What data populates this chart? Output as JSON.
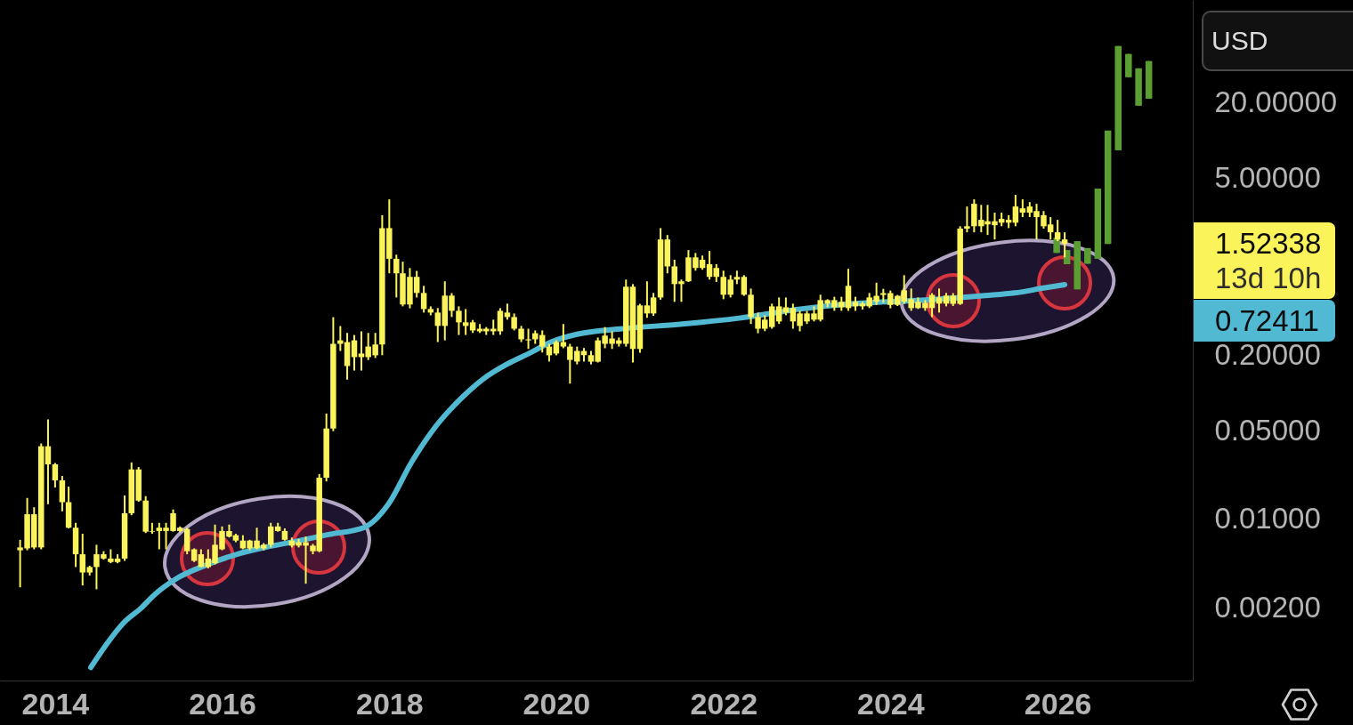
{
  "chart_data": {
    "type": "candlestick",
    "ylabel": "USD",
    "log": true,
    "xlim": [
      "2013-05-05",
      "2027-08-15"
    ],
    "xticks": [
      "2014",
      "2016",
      "2018",
      "2020",
      "2022",
      "2024",
      "2026"
    ],
    "ylim": [
      0.00053,
      130
    ],
    "yticks": [
      {
        "value": 0.002,
        "label": "0.00200"
      },
      {
        "value": 0.01,
        "label": "0.01000"
      },
      {
        "value": 0.05,
        "label": "0.05000"
      },
      {
        "value": 0.2,
        "label": "0.20000"
      },
      {
        "value": 5,
        "label": "5.00000"
      },
      {
        "value": 20,
        "label": "20.00000"
      }
    ],
    "annotations": [
      "1.52338",
      "13d 10h",
      "0.72411"
    ],
    "series": [
      {
        "color": "#fbf35a",
        "x": [
          "2013-08",
          "2013-09",
          "2013-10",
          "2013-11",
          "2013-12",
          "2014-01",
          "2014-02",
          "2014-03",
          "2014-04",
          "2014-05",
          "2014-06",
          "2014-07",
          "2014-08",
          "2014-09",
          "2014-10",
          "2014-11",
          "2014-12",
          "2015-01",
          "2015-02",
          "2015-03",
          "2015-04",
          "2015-05",
          "2015-06",
          "2015-07",
          "2015-08",
          "2015-09",
          "2015-10",
          "2015-11",
          "2015-12",
          "2016-01",
          "2016-02",
          "2016-03",
          "2016-04",
          "2016-05",
          "2016-06",
          "2016-07",
          "2016-08",
          "2016-09",
          "2016-10",
          "2016-11",
          "2016-12",
          "2017-01",
          "2017-02",
          "2017-03",
          "2017-04",
          "2017-05",
          "2017-06",
          "2017-07",
          "2017-08",
          "2017-09",
          "2017-10",
          "2017-11",
          "2017-12",
          "2018-01",
          "2018-02",
          "2018-03",
          "2018-04",
          "2018-05",
          "2018-06",
          "2018-07",
          "2018-08",
          "2018-09",
          "2018-10",
          "2018-11",
          "2018-12",
          "2019-01",
          "2019-02",
          "2019-03",
          "2019-04",
          "2019-05",
          "2019-06",
          "2019-07",
          "2019-08",
          "2019-09",
          "2019-10",
          "2019-11",
          "2019-12",
          "2020-01",
          "2020-02",
          "2020-03",
          "2020-04",
          "2020-05",
          "2020-06",
          "2020-07",
          "2020-08",
          "2020-09",
          "2020-10",
          "2020-11",
          "2020-12",
          "2021-01",
          "2021-02",
          "2021-03",
          "2021-04",
          "2021-05",
          "2021-06",
          "2021-07",
          "2021-08",
          "2021-09",
          "2021-10",
          "2021-11",
          "2021-12",
          "2022-01",
          "2022-02",
          "2022-03",
          "2022-04",
          "2022-05",
          "2022-06",
          "2022-07",
          "2022-08",
          "2022-09",
          "2022-10",
          "2022-11",
          "2022-12",
          "2023-01",
          "2023-02",
          "2023-03",
          "2023-04",
          "2023-05",
          "2023-06",
          "2023-07",
          "2023-08",
          "2023-09",
          "2023-10",
          "2023-11",
          "2023-12",
          "2024-01",
          "2024-02",
          "2024-03",
          "2024-04",
          "2024-05",
          "2024-06",
          "2024-07",
          "2024-08",
          "2024-09",
          "2024-10",
          "2024-11",
          "2024-12",
          "2025-01",
          "2025-02",
          "2025-03",
          "2025-04",
          "2025-05",
          "2025-06",
          "2025-07",
          "2025-08",
          "2025-09",
          "2025-10",
          "2025-11",
          "2025-12",
          "2026-01",
          "2026-02"
        ],
        "ohlc": [
          [
            0.006,
            0.0069,
            0.0029,
            0.0057
          ],
          [
            0.011,
            0.0148,
            0.0057,
            0.0059
          ],
          [
            0.011,
            0.0125,
            0.0058,
            0.006
          ],
          [
            0.038,
            0.04,
            0.0058,
            0.006
          ],
          [
            0.038,
            0.062,
            0.0132,
            0.0273
          ],
          [
            0.0273,
            0.028,
            0.0179,
            0.0204
          ],
          [
            0.0204,
            0.0221,
            0.0116,
            0.0137
          ],
          [
            0.0137,
            0.0182,
            0.0085,
            0.0086
          ],
          [
            0.0086,
            0.0094,
            0.0042,
            0.0053
          ],
          [
            0.0053,
            0.0077,
            0.003,
            0.0038
          ],
          [
            0.0042,
            0.0043,
            0.0036,
            0.0038
          ],
          [
            0.0053,
            0.0063,
            0.0028,
            0.0042
          ],
          [
            0.0053,
            0.0056,
            0.0048,
            0.0049
          ],
          [
            0.0049,
            0.0058,
            0.0045,
            0.0046
          ],
          [
            0.0049,
            0.0053,
            0.0045,
            0.0046
          ],
          [
            0.0112,
            0.0155,
            0.0047,
            0.0049
          ],
          [
            0.0249,
            0.0283,
            0.0108,
            0.0112
          ],
          [
            0.0249,
            0.026,
            0.0138,
            0.0141
          ],
          [
            0.0141,
            0.0153,
            0.0078,
            0.008
          ],
          [
            0.0081,
            0.0094,
            0.0077,
            0.008
          ],
          [
            0.0086,
            0.0094,
            0.0058,
            0.0081
          ],
          [
            0.0086,
            0.0094,
            0.0058,
            0.0081
          ],
          [
            0.0112,
            0.012,
            0.008,
            0.0081
          ],
          [
            0.0086,
            0.0088,
            0.0079,
            0.0081
          ],
          [
            0.0084,
            0.0086,
            0.0053,
            0.0056
          ],
          [
            0.0058,
            0.0059,
            0.0046,
            0.0047
          ],
          [
            0.0053,
            0.0058,
            0.0042,
            0.0042
          ],
          [
            0.0049,
            0.0058,
            0.0041,
            0.0042
          ],
          [
            0.0063,
            0.0091,
            0.0044,
            0.0045
          ],
          [
            0.0081,
            0.0088,
            0.0057,
            0.0058
          ],
          [
            0.0081,
            0.0091,
            0.0072,
            0.0073
          ],
          [
            0.0075,
            0.0077,
            0.0066,
            0.0068
          ],
          [
            0.0068,
            0.0075,
            0.0058,
            0.0059
          ],
          [
            0.0068,
            0.0069,
            0.0057,
            0.0059
          ],
          [
            0.0068,
            0.0086,
            0.0058,
            0.0059
          ],
          [
            0.0063,
            0.0065,
            0.0057,
            0.0059
          ],
          [
            0.0088,
            0.0094,
            0.006,
            0.0063
          ],
          [
            0.0088,
            0.0094,
            0.008,
            0.0081
          ],
          [
            0.0081,
            0.0085,
            0.0068,
            0.0069
          ],
          [
            0.0068,
            0.0072,
            0.006,
            0.0062
          ],
          [
            0.0066,
            0.007,
            0.006,
            0.0062
          ],
          [
            0.0066,
            0.0073,
            0.0031,
            0.0062
          ],
          [
            0.0062,
            0.0064,
            0.0053,
            0.0056
          ],
          [
            0.0214,
            0.0229,
            0.0055,
            0.0056
          ],
          [
            0.0525,
            0.069,
            0.02,
            0.0214
          ],
          [
            0.246,
            0.4,
            0.05,
            0.0525
          ],
          [
            0.262,
            0.34,
            0.216,
            0.246
          ],
          [
            0.254,
            0.3,
            0.128,
            0.164
          ],
          [
            0.262,
            0.289,
            0.151,
            0.193
          ],
          [
            0.206,
            0.309,
            0.151,
            0.193
          ],
          [
            0.234,
            0.3,
            0.183,
            0.193
          ],
          [
            0.243,
            0.3,
            0.19,
            0.1995
          ],
          [
            2.03,
            2.57,
            0.2,
            0.243
          ],
          [
            2.03,
            3.43,
            0.89,
            1.16
          ],
          [
            1.16,
            1.25,
            0.573,
            0.89
          ],
          [
            0.89,
            1.1,
            0.487,
            0.504
          ],
          [
            0.834,
            0.98,
            0.47,
            0.504
          ],
          [
            0.834,
            0.93,
            0.573,
            0.622
          ],
          [
            0.622,
            0.708,
            0.435,
            0.464
          ],
          [
            0.464,
            0.487,
            0.414,
            0.435
          ],
          [
            0.435,
            0.472,
            0.254,
            0.341
          ],
          [
            0.5925,
            0.769,
            0.262,
            0.341
          ],
          [
            0.5925,
            0.62,
            0.401,
            0.449
          ],
          [
            0.449,
            0.487,
            0.289,
            0.364
          ],
          [
            0.364,
            0.464,
            0.289,
            0.341
          ],
          [
            0.364,
            0.38,
            0.3,
            0.314
          ],
          [
            0.324,
            0.353,
            0.3,
            0.309
          ],
          [
            0.324,
            0.334,
            0.289,
            0.309
          ],
          [
            0.324,
            0.382,
            0.289,
            0.309
          ],
          [
            0.449,
            0.472,
            0.29,
            0.309
          ],
          [
            0.435,
            0.512,
            0.382,
            0.401
          ],
          [
            0.401,
            0.428,
            0.314,
            0.324
          ],
          [
            0.324,
            0.341,
            0.254,
            0.267
          ],
          [
            0.267,
            0.324,
            0.224,
            0.262
          ],
          [
            0.2985,
            0.314,
            0.246,
            0.267
          ],
          [
            0.289,
            0.314,
            0.21,
            0.234
          ],
          [
            0.234,
            0.246,
            0.178,
            0.1995
          ],
          [
            0.254,
            0.262,
            0.1995,
            0.206
          ],
          [
            0.254,
            0.353,
            0.227,
            0.234
          ],
          [
            0.234,
            0.246,
            0.119,
            0.1835
          ],
          [
            0.216,
            0.234,
            0.169,
            0.178
          ],
          [
            0.216,
            0.228,
            0.178,
            0.2
          ],
          [
            0.2,
            0.216,
            0.169,
            0.1776
          ],
          [
            0.262,
            0.276,
            0.175,
            0.1776
          ],
          [
            0.2855,
            0.334,
            0.227,
            0.246
          ],
          [
            0.271,
            0.309,
            0.224,
            0.246
          ],
          [
            0.262,
            0.276,
            0.234,
            0.246
          ],
          [
            0.697,
            0.794,
            0.234,
            0.246
          ],
          [
            0.697,
            0.731,
            0.175,
            0.224
          ],
          [
            0.4955,
            0.51,
            0.209,
            0.224
          ],
          [
            0.4955,
            0.769,
            0.395,
            0.428
          ],
          [
            0.573,
            0.622,
            0.41,
            0.428
          ],
          [
            1.65,
            2.03,
            0.55,
            0.573
          ],
          [
            1.65,
            1.79,
            0.89,
            1.01
          ],
          [
            1.01,
            1.14,
            0.529,
            0.731
          ],
          [
            0.769,
            0.794,
            0.529,
            0.731
          ],
          [
            1.19,
            1.36,
            0.76,
            0.769
          ],
          [
            1.19,
            1.29,
            0.934,
            0.981
          ],
          [
            1.14,
            1.23,
            0.95,
            0.981
          ],
          [
            1.05,
            1.34,
            0.794,
            0.834
          ],
          [
            0.981,
            1.05,
            0.76,
            0.834
          ],
          [
            0.834,
            0.934,
            0.555,
            0.602
          ],
          [
            0.794,
            0.861,
            0.573,
            0.602
          ],
          [
            0.834,
            0.934,
            0.731,
            0.794
          ],
          [
            0.834,
            0.861,
            0.59,
            0.602
          ],
          [
            0.602,
            0.674,
            0.353,
            0.401
          ],
          [
            0.401,
            0.435,
            0.2985,
            0.324
          ],
          [
            0.382,
            0.414,
            0.31,
            0.324
          ],
          [
            0.487,
            0.512,
            0.324,
            0.334
          ],
          [
            0.487,
            0.573,
            0.353,
            0.37
          ],
          [
            0.479,
            0.573,
            0.414,
            0.435
          ],
          [
            0.472,
            0.512,
            0.324,
            0.37
          ],
          [
            0.428,
            0.449,
            0.309,
            0.341
          ],
          [
            0.428,
            0.449,
            0.353,
            0.37
          ],
          [
            0.428,
            0.487,
            0.37,
            0.382
          ],
          [
            0.546,
            0.602,
            0.37,
            0.382
          ],
          [
            0.546,
            0.555,
            0.479,
            0.512
          ],
          [
            0.546,
            0.58,
            0.449,
            0.479
          ],
          [
            0.529,
            0.58,
            0.449,
            0.479
          ],
          [
            0.708,
            0.965,
            0.449,
            0.472
          ],
          [
            0.529,
            0.58,
            0.449,
            0.487
          ],
          [
            0.512,
            0.529,
            0.46,
            0.487
          ],
          [
            0.573,
            0.622,
            0.472,
            0.487
          ],
          [
            0.59,
            0.75,
            0.5,
            0.53
          ],
          [
            0.62,
            0.67,
            0.52,
            0.6
          ],
          [
            0.62,
            0.65,
            0.47,
            0.5
          ],
          [
            0.59,
            0.6,
            0.49,
            0.5
          ],
          [
            0.653,
            0.86,
            0.51,
            0.53
          ],
          [
            0.555,
            0.674,
            0.449,
            0.472
          ],
          [
            0.529,
            0.573,
            0.464,
            0.472
          ],
          [
            0.52,
            0.546,
            0.449,
            0.472
          ],
          [
            0.6,
            0.62,
            0.4,
            0.472
          ],
          [
            0.573,
            0.674,
            0.435,
            0.512
          ],
          [
            0.5925,
            0.622,
            0.487,
            0.512
          ],
          [
            0.5925,
            0.62,
            0.49,
            0.51
          ],
          [
            2.01,
            2.1,
            0.5,
            0.51
          ],
          [
            2.1,
            3.01,
            1.88,
            2.01
          ],
          [
            3.16,
            3.43,
            1.88,
            2.1
          ],
          [
            2.36,
            3.1,
            1.88,
            2.1
          ],
          [
            2.3,
            3.1,
            1.79,
            2.17
          ],
          [
            2.3,
            2.69,
            1.65,
            2.14
          ],
          [
            2.4,
            2.69,
            2.1,
            2.24
          ],
          [
            2.36,
            2.57,
            2.03,
            2.24
          ],
          [
            3.01,
            3.72,
            2.1,
            2.24
          ],
          [
            2.91,
            3.43,
            2.48,
            2.69
          ],
          [
            3.01,
            3.26,
            2.48,
            2.69
          ],
          [
            2.77,
            3.16,
            1.65,
            2.48
          ],
          [
            2.57,
            2.77,
            2.01,
            2.1
          ],
          [
            2.17,
            2.48,
            1.65,
            1.88
          ],
          [
            1.88,
            2.36,
            1.6,
            1.65
          ],
          [
            1.65,
            1.88,
            1.19,
            1.52338
          ]
        ]
      },
      {
        "color": "#5b9f32",
        "x": [
          "2025-12-28",
          "2026-02-11",
          "2026-03-28",
          "2026-05-12",
          "2026-06-26",
          "2026-08-09",
          "2026-09-23",
          "2026-11-07",
          "2026-12-21",
          "2027-02-04"
        ],
        "ohlc": [
          [
            1.29,
            1.7,
            1.29,
            1.7
          ],
          [
            1.05,
            1.36,
            1.05,
            1.36
          ],
          [
            0.664,
            1.6,
            0.664,
            1.6
          ],
          [
            1.06,
            1.41,
            1.06,
            1.41
          ],
          [
            1.16,
            4.17,
            1.16,
            4.17
          ],
          [
            1.52,
            12.0,
            1.52,
            12.0
          ],
          [
            8.39,
            56.2,
            8.39,
            56.2
          ],
          [
            31.8,
            48.6,
            31.8,
            48.6
          ],
          [
            18.9,
            37.4,
            18.9,
            37.4
          ],
          [
            21.5,
            42.7,
            21.5,
            42.7
          ]
        ]
      },
      {
        "type": "line",
        "color": "#52b9d2",
        "x": [
          "2014-06-06",
          "2014-08-11",
          "2014-10-28",
          "2015-01-14",
          "2015-03-05",
          "2015-06-18",
          "2015-10-24",
          "2016-03-06",
          "2016-07-12",
          "2016-11-17",
          "2017-04-10",
          "2017-09-13",
          "2017-12-28",
          "2018-04-08",
          "2018-07-22",
          "2018-11-04",
          "2019-02-13",
          "2019-05-29",
          "2019-09-11",
          "2019-12-09",
          "2020-04-05",
          "2020-10-17",
          "2021-07-04",
          "2022-03-18",
          "2022-12-03",
          "2023-07-25",
          "2024-06-01",
          "2025-02-18",
          "2025-06-26",
          "2025-11-01",
          "2026-02-01"
        ],
        "values": [
          0.000673,
          0.00101,
          0.00152,
          0.002,
          0.00247,
          0.00342,
          0.00436,
          0.0053,
          0.00604,
          0.0067,
          0.00759,
          0.00864,
          0.0132,
          0.0283,
          0.0542,
          0.0883,
          0.1285,
          0.169,
          0.2096,
          0.254,
          0.294,
          0.324,
          0.3526,
          0.3947,
          0.464,
          0.512,
          0.546,
          0.5925,
          0.622,
          0.68,
          0.72411
        ]
      }
    ]
  }
}
